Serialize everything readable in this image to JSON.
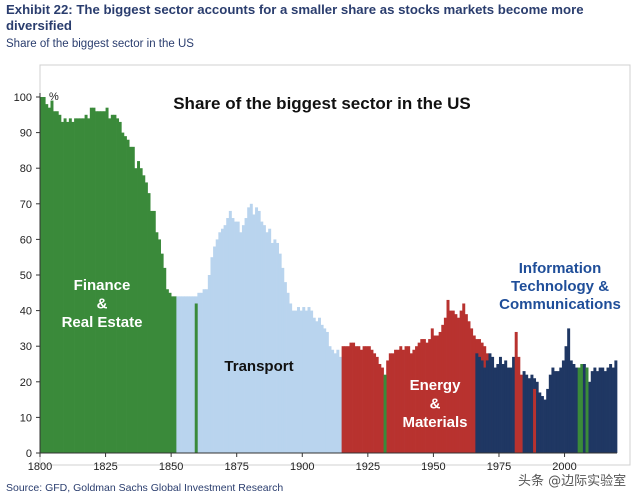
{
  "header": {
    "title": "Exhibit 22: The biggest sector accounts for a smaller share as stocks markets become more diversified",
    "subtitle": "Share of the biggest sector in the US"
  },
  "footer": {
    "source": "Source: GFD, Goldman Sachs Global Investment Research",
    "watermark": "头条 @边际实验室"
  },
  "colors": {
    "finance": "#3a8a3a",
    "transport": "#b9d4ee",
    "energy": "#b8322f",
    "it": "#1f3763",
    "text_blue": "#2a3d6e"
  },
  "chart_data": {
    "type": "bar",
    "title": "Share of the biggest sector in the US",
    "ylabel": "%",
    "ylim": [
      0,
      100
    ],
    "xlim": [
      1800,
      2020
    ],
    "grid": false,
    "x_ticks": [
      1800,
      1825,
      1850,
      1875,
      1900,
      1925,
      1950,
      1975,
      2000
    ],
    "y_ticks": [
      0,
      10,
      20,
      30,
      40,
      50,
      60,
      70,
      80,
      90,
      100
    ],
    "region_labels": [
      {
        "series": "finance",
        "lines": [
          "Finance",
          "&",
          "Real Estate"
        ]
      },
      {
        "series": "transport",
        "lines": [
          "Transport"
        ]
      },
      {
        "series": "energy",
        "lines": [
          "Energy",
          "&",
          "Materials"
        ]
      },
      {
        "series": "it",
        "lines": [
          "Information",
          "Technology &",
          "Communications"
        ]
      }
    ],
    "series": [
      {
        "key": "finance",
        "start_year": 1800,
        "values": [
          100,
          100,
          98,
          97,
          99,
          96,
          96,
          95,
          93,
          94,
          93,
          94,
          93,
          94,
          94,
          94,
          94,
          95,
          94,
          97,
          97,
          96,
          96,
          96,
          96,
          97,
          94,
          95,
          95,
          94,
          93,
          90,
          89,
          88,
          86,
          86,
          80,
          82,
          80,
          78,
          76,
          73,
          68,
          68,
          62,
          60,
          56,
          52,
          46,
          45,
          44,
          44
        ]
      },
      {
        "key": "transport",
        "start_year": 1852,
        "values": [
          44,
          44,
          44,
          44,
          44,
          44,
          44,
          44,
          45,
          45,
          46,
          46,
          50,
          55,
          58,
          60,
          62,
          63,
          64,
          66,
          68,
          66,
          65,
          65,
          62,
          64,
          66,
          69,
          70,
          67,
          69,
          68,
          65,
          64,
          62,
          63,
          59,
          60,
          59,
          56,
          52,
          48,
          45,
          42,
          40,
          40,
          41,
          40,
          41,
          40,
          41,
          40,
          38,
          37,
          38,
          36,
          35,
          34,
          30,
          29,
          28,
          29,
          27
        ]
      },
      {
        "key": "finance",
        "start_year": 1859,
        "values": [
          42
        ]
      },
      {
        "key": "energy",
        "start_year": 1915,
        "values": [
          30,
          30,
          30,
          31,
          31,
          30,
          30,
          29,
          30,
          30,
          30,
          29,
          28,
          27,
          25,
          24,
          20,
          26,
          28,
          28,
          29,
          29,
          30,
          29,
          30,
          30,
          28,
          29,
          30,
          31,
          32,
          32,
          31,
          32,
          35,
          33,
          33,
          34,
          36,
          38,
          43,
          40,
          40,
          39,
          38,
          40,
          42,
          39,
          37,
          35,
          33,
          32,
          32,
          31,
          30,
          28,
          25,
          24
        ]
      },
      {
        "key": "finance",
        "start_year": 1931,
        "values": [
          22
        ]
      },
      {
        "key": "it",
        "start_year": 1966,
        "values": [
          28,
          27,
          26,
          24,
          26,
          28,
          27,
          24,
          25,
          27,
          25,
          26,
          24,
          24,
          27
        ]
      },
      {
        "key": "energy",
        "start_year": 1981,
        "values": [
          34,
          27,
          22
        ]
      },
      {
        "key": "it",
        "start_year": 1984,
        "values": [
          23,
          22,
          21,
          22,
          21,
          20,
          17,
          16,
          15,
          18,
          22,
          24,
          23,
          23,
          24,
          26,
          30,
          35,
          26,
          25,
          24,
          22,
          23
        ]
      },
      {
        "key": "energy",
        "start_year": 1988,
        "values": [
          18
        ]
      },
      {
        "key": "finance",
        "start_year": 2005,
        "values": [
          24,
          25
        ]
      },
      {
        "key": "it",
        "start_year": 2007,
        "values": [
          25,
          24,
          20,
          23,
          24,
          23,
          24,
          24,
          23,
          24,
          25,
          24,
          26
        ]
      },
      {
        "key": "finance",
        "start_year": 2008,
        "values": [
          24
        ]
      }
    ]
  }
}
